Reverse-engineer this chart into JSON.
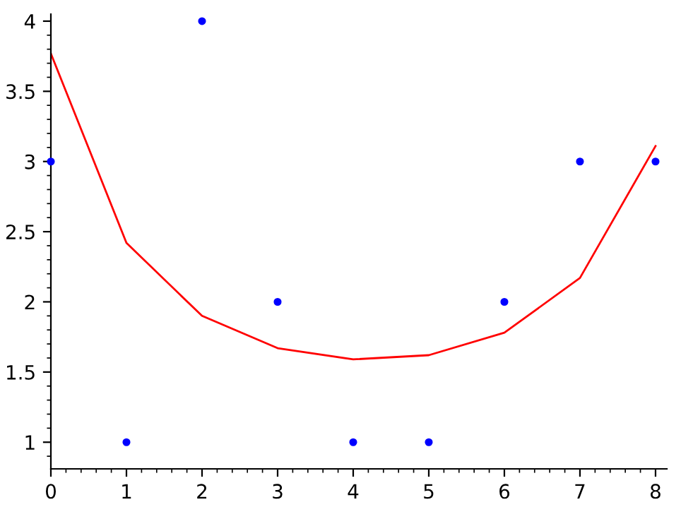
{
  "chart_data": {
    "type": "scatter",
    "x": [
      0,
      1,
      2,
      3,
      4,
      5,
      6,
      7,
      8
    ],
    "series": [
      {
        "color": "#0000ff",
        "values": [
          3,
          1,
          4,
          2,
          1,
          1,
          2,
          3,
          3
        ],
        "marker": "circle"
      },
      {
        "type": "line",
        "color": "#ff0000",
        "values": [
          3.77,
          2.42,
          1.9,
          1.67,
          1.59,
          1.62,
          1.78,
          2.17,
          3.11
        ],
        "marker": "none"
      }
    ],
    "xlim": [
      0,
      8.15
    ],
    "ylim": [
      0.81,
      4.05
    ],
    "xticks": [
      0,
      1,
      2,
      3,
      4,
      5,
      6,
      7,
      8
    ],
    "yticks": [
      1,
      1.5,
      2,
      2.5,
      3,
      3.5,
      4
    ],
    "grid": false,
    "legend": false
  }
}
